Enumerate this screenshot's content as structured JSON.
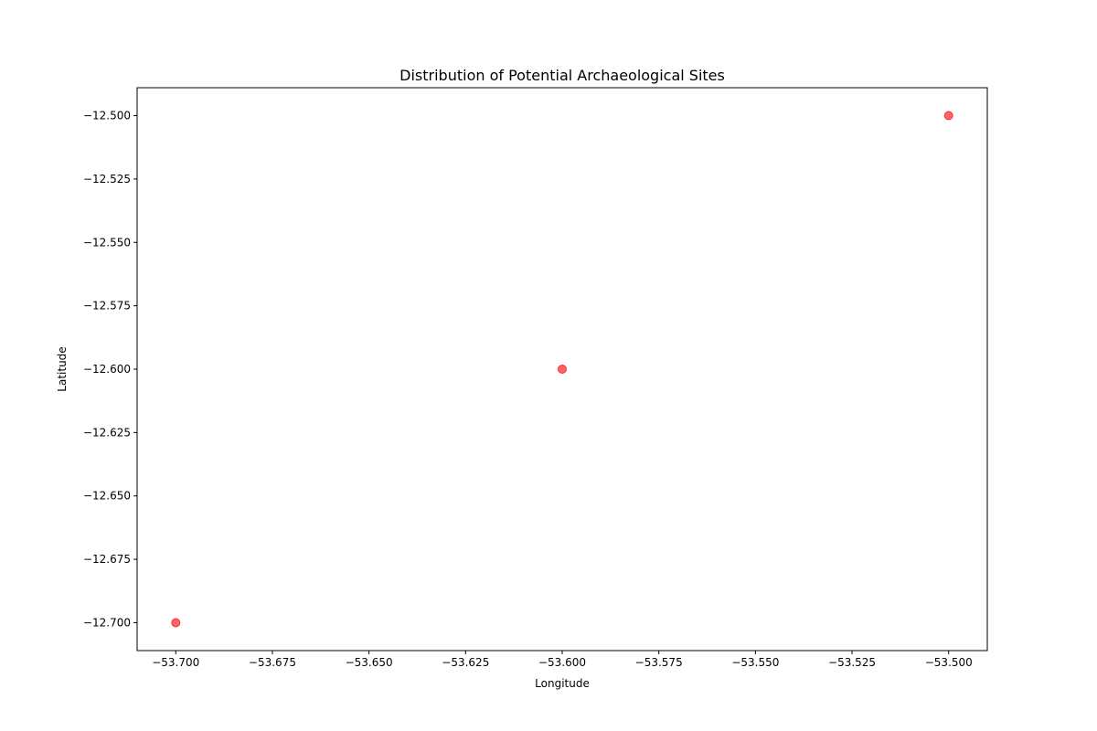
{
  "chart_data": {
    "type": "scatter",
    "title": "Distribution of Potential Archaeological Sites",
    "xlabel": "Longitude",
    "ylabel": "Latitude",
    "xlim": [
      -53.71,
      -53.49
    ],
    "ylim": [
      -12.711,
      -12.489
    ],
    "x_ticks": [
      -53.7,
      -53.675,
      -53.65,
      -53.625,
      -53.6,
      -53.575,
      -53.55,
      -53.525,
      -53.5
    ],
    "x_tick_labels": [
      "−53.700",
      "−53.675",
      "−53.650",
      "−53.625",
      "−53.600",
      "−53.575",
      "−53.550",
      "−53.525",
      "−53.500"
    ],
    "y_ticks": [
      -12.5,
      -12.525,
      -12.55,
      -12.575,
      -12.6,
      -12.625,
      -12.65,
      -12.675,
      -12.7
    ],
    "y_tick_labels": [
      "−12.500",
      "−12.525",
      "−12.550",
      "−12.575",
      "−12.600",
      "−12.625",
      "−12.650",
      "−12.675",
      "−12.700"
    ],
    "points": [
      {
        "x": -53.7,
        "y": -12.7
      },
      {
        "x": -53.6,
        "y": -12.6
      },
      {
        "x": -53.5,
        "y": -12.5
      }
    ],
    "marker_color": "#ff0000",
    "marker_opacity": 0.6,
    "grid": false,
    "legend": false
  }
}
